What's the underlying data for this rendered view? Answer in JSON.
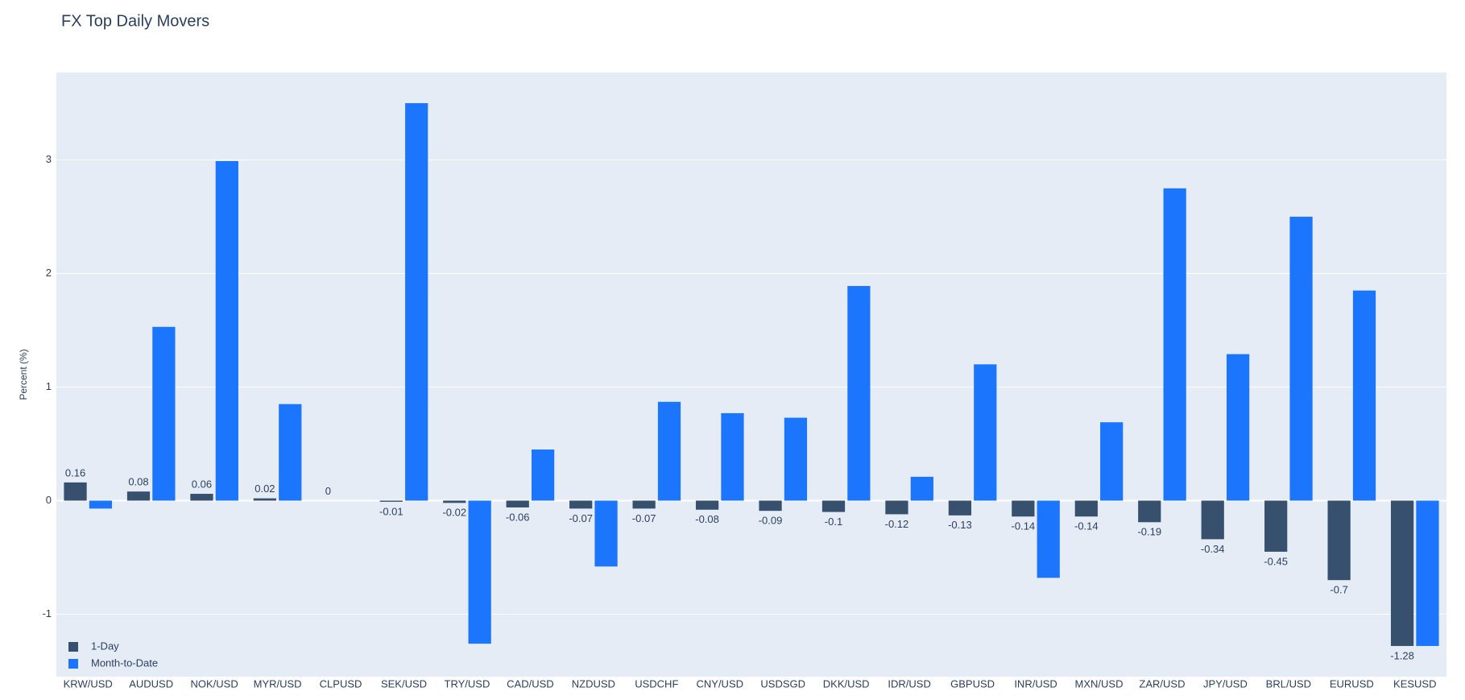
{
  "chart_data": {
    "type": "bar",
    "title": "FX Top Daily Movers",
    "y_label": "Percent (%)",
    "categories": [
      "KRW/USD",
      "AUDUSD",
      "NOK/USD",
      "MYR/USD",
      "CLPUSD",
      "SEK/USD",
      "TRY/USD",
      "CAD/USD",
      "NZDUSD",
      "USDCHF",
      "CNY/USD",
      "USDSGD",
      "DKK/USD",
      "IDR/USD",
      "GBPUSD",
      "INR/USD",
      "MXN/USD",
      "ZAR/USD",
      "JPY/USD",
      "BRL/USD",
      "EURUSD",
      "KESUSD"
    ],
    "series": [
      {
        "name": "1-Day",
        "color": "#36506e",
        "show_labels": true,
        "values": [
          0.16,
          0.08,
          0.06,
          0.02,
          0,
          -0.01,
          -0.02,
          -0.06,
          -0.07,
          -0.07,
          -0.08,
          -0.09,
          -0.1,
          -0.12,
          -0.13,
          -0.14,
          -0.14,
          -0.19,
          -0.34,
          -0.45,
          -0.7,
          -1.28
        ]
      },
      {
        "name": "Month-to-Date",
        "color": "#1c76fd",
        "show_labels": false,
        "values": [
          -0.07,
          1.53,
          2.99,
          0.85,
          0,
          3.5,
          -1.26,
          0.45,
          -0.58,
          0.87,
          0.77,
          0.73,
          1.89,
          0.21,
          1.2,
          -0.68,
          0.69,
          2.75,
          1.29,
          2.5,
          1.85,
          -1.28
        ]
      }
    ],
    "ylim": [
      -1.55,
      3.77
    ],
    "yticks": [
      -1,
      0,
      1,
      2,
      3
    ],
    "grid": true,
    "legend": "bottom-left"
  }
}
